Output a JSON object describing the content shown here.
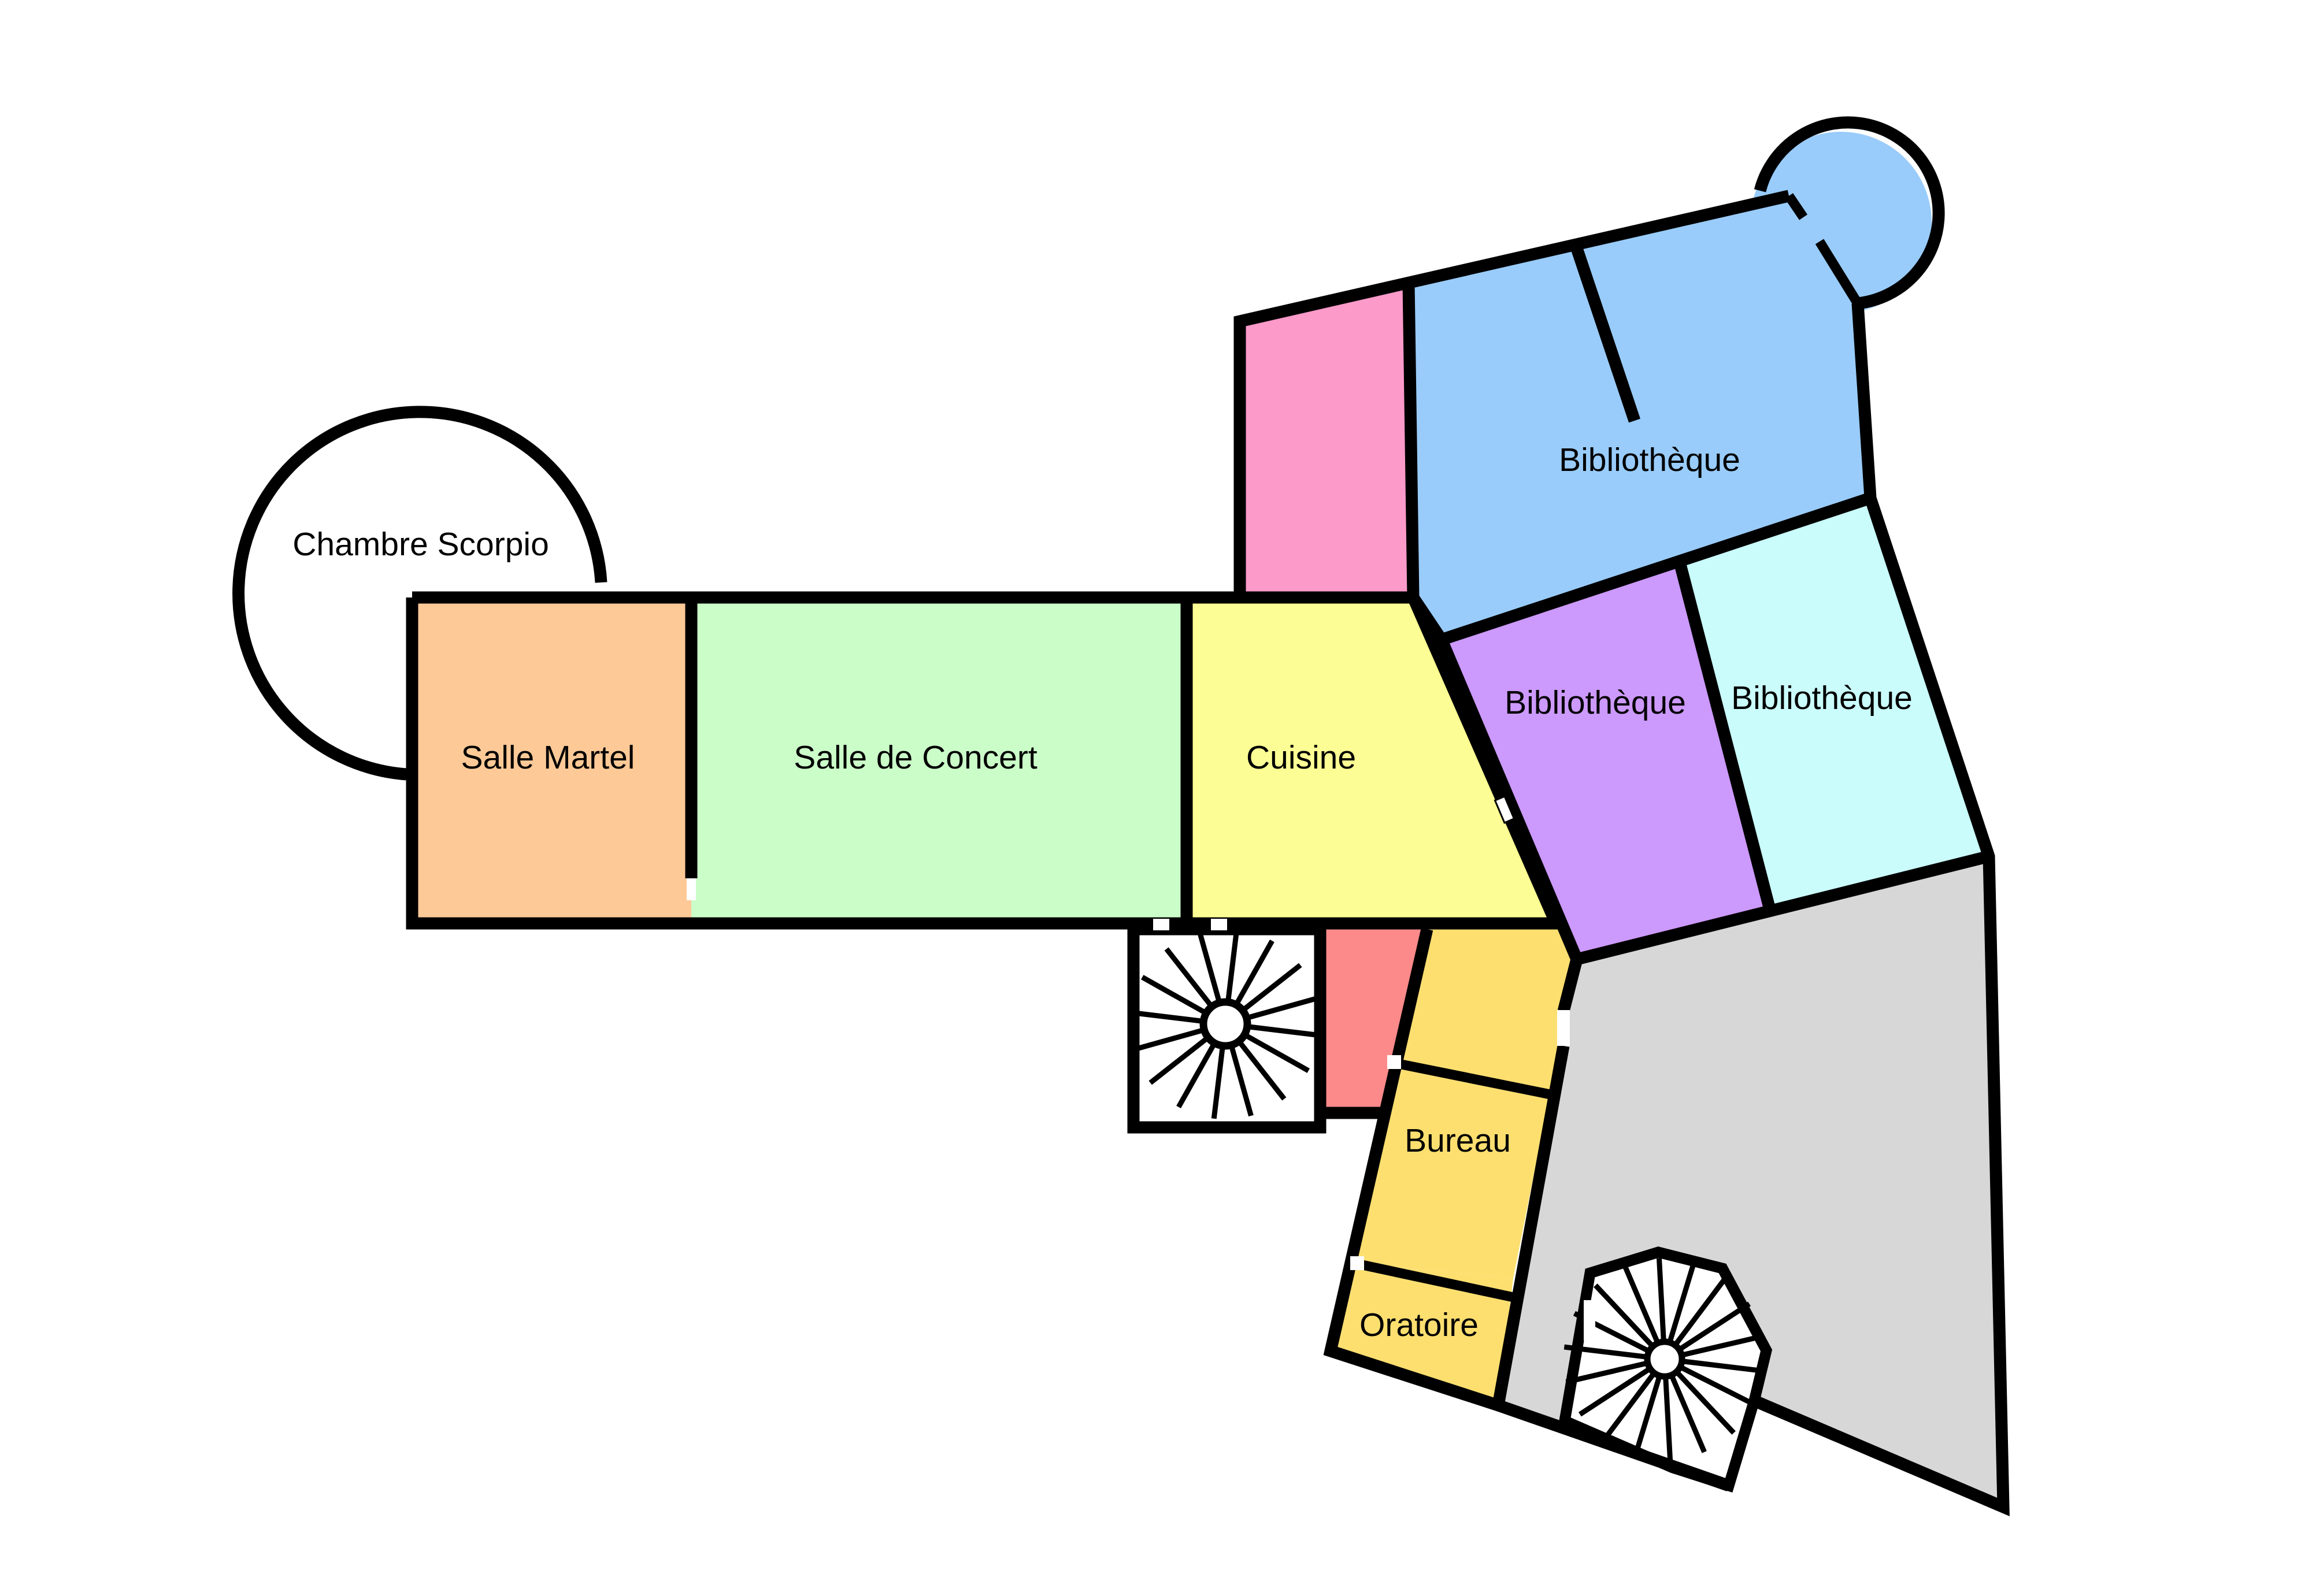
{
  "rooms": {
    "chambre_scorpio": {
      "label": "Chambre Scorpio",
      "color": "#ffffff"
    },
    "salle_martel": {
      "label": "Salle Martel",
      "color": "#fdc997"
    },
    "salle_de_concert": {
      "label": "Salle de Concert",
      "color": "#cbfdc9"
    },
    "cuisine": {
      "label": "Cuisine",
      "color": "#fcfd94"
    },
    "bibliotheque_bleue": {
      "label": "Bibliothèque",
      "color": "#99ccfa"
    },
    "bibliotheque_violette": {
      "label": "Bibliothèque",
      "color": "#cc99fc"
    },
    "bibliotheque_cyan": {
      "label": "Bibliothèque",
      "color": "#cafcfc"
    },
    "bureau": {
      "label": "Bureau",
      "color": "#fddf70"
    },
    "oratoire": {
      "label": "Oratoire",
      "color": "#fddf70"
    },
    "rose": {
      "color": "#fc9aca"
    },
    "rouge": {
      "color": "#fc8a8a"
    },
    "gris": {
      "color": "#d7d7d7"
    }
  },
  "colors": {
    "wall": "#000000",
    "background": "#ffffff"
  },
  "stairs": [
    {
      "name": "spiral-staircase-west",
      "icon": "spiral-staircase-icon"
    },
    {
      "name": "spiral-staircase-east",
      "icon": "spiral-staircase-icon"
    }
  ]
}
